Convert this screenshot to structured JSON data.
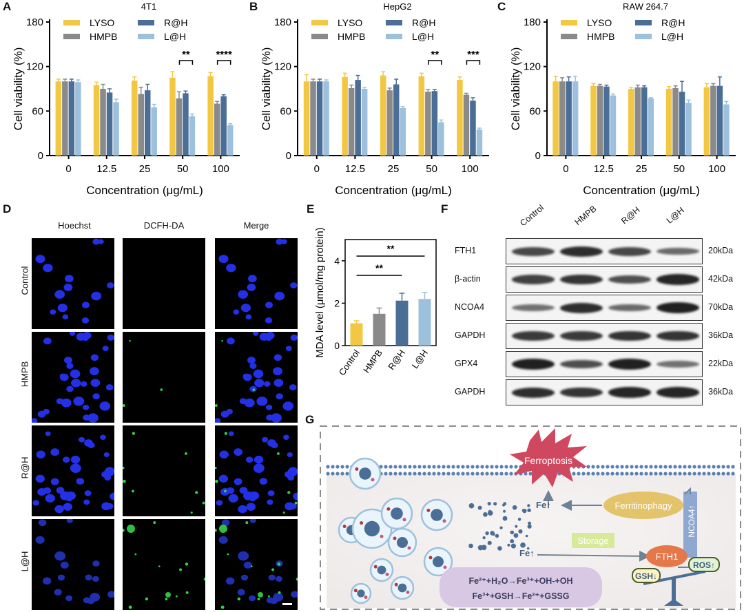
{
  "panels": {
    "A": "A",
    "B": "B",
    "C": "C",
    "D": "D",
    "E": "E",
    "F": "F",
    "G": "G"
  },
  "chart_data": [
    {
      "type": "bar",
      "panel": "A",
      "title": "4T1",
      "xlabel": "Concentration (μg/mL)",
      "ylabel": "Cell viability (%)",
      "ylim": [
        0,
        180
      ],
      "yticks": [
        0,
        60,
        120,
        180
      ],
      "categories": [
        "0",
        "12.5",
        "25",
        "50",
        "100"
      ],
      "series": [
        {
          "name": "LYSO",
          "color": "#f2c744",
          "values": [
            100,
            95,
            101,
            105,
            107
          ],
          "err": [
            3,
            4,
            5,
            8,
            5
          ]
        },
        {
          "name": "HMPB",
          "color": "#8a8a8a",
          "values": [
            100,
            90,
            83,
            77,
            70
          ],
          "err": [
            3,
            6,
            9,
            9,
            3
          ]
        },
        {
          "name": "R@H",
          "color": "#4b6e96",
          "values": [
            100,
            85,
            88,
            84,
            80
          ],
          "err": [
            3,
            5,
            8,
            3,
            2
          ]
        },
        {
          "name": "L@H",
          "color": "#9dc1dc",
          "values": [
            99,
            72,
            65,
            53,
            41
          ],
          "err": [
            3,
            4,
            4,
            3,
            2
          ]
        }
      ],
      "legend_order": [
        "LYSO",
        "R@H",
        "HMPB",
        "L@H"
      ],
      "annotations": [
        {
          "category": "50",
          "text": "**"
        },
        {
          "category": "100",
          "text": "****"
        }
      ]
    },
    {
      "type": "bar",
      "panel": "B",
      "title": "HepG2",
      "xlabel": "Concentration (μg/mL)",
      "ylabel": "Cell viability (%)",
      "ylim": [
        0,
        180
      ],
      "yticks": [
        0,
        60,
        120,
        180
      ],
      "categories": [
        "0",
        "12.5",
        "25",
        "50",
        "100"
      ],
      "series": [
        {
          "name": "LYSO",
          "color": "#f2c744",
          "values": [
            100,
            106,
            108,
            107,
            102
          ],
          "err": [
            9,
            5,
            5,
            4,
            4
          ]
        },
        {
          "name": "HMPB",
          "color": "#8a8a8a",
          "values": [
            100,
            91,
            88,
            86,
            82
          ],
          "err": [
            3,
            4,
            3,
            3,
            2
          ]
        },
        {
          "name": "R@H",
          "color": "#4b6e96",
          "values": [
            100,
            102,
            96,
            87,
            74
          ],
          "err": [
            3,
            6,
            7,
            2,
            4
          ]
        },
        {
          "name": "L@H",
          "color": "#9dc1dc",
          "values": [
            100,
            90,
            64,
            45,
            35
          ],
          "err": [
            2,
            2,
            2,
            3,
            2
          ]
        }
      ],
      "legend_order": [
        "LYSO",
        "R@H",
        "HMPB",
        "L@H"
      ],
      "annotations": [
        {
          "category": "50",
          "text": "**"
        },
        {
          "category": "100",
          "text": "***"
        }
      ]
    },
    {
      "type": "bar",
      "panel": "C",
      "title": "RAW 264.7",
      "xlabel": "Concentration (μg/mL)",
      "ylabel": "Cell viability (%)",
      "ylim": [
        0,
        180
      ],
      "yticks": [
        0,
        60,
        120,
        180
      ],
      "categories": [
        "0",
        "12.5",
        "25",
        "50",
        "100"
      ],
      "series": [
        {
          "name": "LYSO",
          "color": "#f2c744",
          "values": [
            100,
            94,
            90,
            90,
            92
          ],
          "err": [
            7,
            3,
            2,
            3,
            5
          ]
        },
        {
          "name": "HMPB",
          "color": "#8a8a8a",
          "values": [
            100,
            94,
            92,
            91,
            94
          ],
          "err": [
            5,
            2,
            3,
            3,
            3
          ]
        },
        {
          "name": "R@H",
          "color": "#4b6e96",
          "values": [
            100,
            93,
            92,
            86,
            94
          ],
          "err": [
            6,
            2,
            2,
            14,
            12
          ]
        },
        {
          "name": "L@H",
          "color": "#9dc1dc",
          "values": [
            100,
            81,
            77,
            71,
            69
          ],
          "err": [
            7,
            2,
            1,
            4,
            4
          ]
        }
      ],
      "legend_order": [
        "LYSO",
        "R@H",
        "HMPB",
        "L@H"
      ],
      "annotations": []
    },
    {
      "type": "bar",
      "panel": "E",
      "ylabel": "MDA level  (μmol/mg protein)",
      "ylim": [
        0,
        5
      ],
      "yticks": [
        0,
        2,
        4
      ],
      "categories": [
        "Control",
        "HMPB",
        "R@H",
        "L@H"
      ],
      "series": [
        {
          "colors": [
            "#f2c744",
            "#8a8a8a",
            "#4b6e96",
            "#9dc1dc"
          ],
          "values": [
            1.05,
            1.5,
            2.12,
            2.2
          ],
          "err": [
            0.12,
            0.27,
            0.35,
            0.3
          ]
        }
      ],
      "annotations": [
        {
          "from": "Control",
          "to": "R@H",
          "text": "**"
        },
        {
          "from": "Control",
          "to": "L@H",
          "text": "**"
        }
      ]
    }
  ],
  "microscopy": {
    "columns": [
      "Hoechst",
      "DCFH-DA",
      "Merge"
    ],
    "rows": [
      "Control",
      "HMPB",
      "R@H",
      "L@H"
    ]
  },
  "western": {
    "lanes": [
      "Control",
      "HMPB",
      "R@H",
      "L@H"
    ],
    "rows": [
      {
        "protein": "FTH1",
        "kda": "20kDa"
      },
      {
        "protein": "β-actin",
        "kda": "42kDa"
      },
      {
        "protein": "NCOA4",
        "kda": "70kDa"
      },
      {
        "protein": "GAPDH",
        "kda": "36kDa"
      },
      {
        "protein": "GPX4",
        "kda": "22kDa"
      },
      {
        "protein": "GAPDH",
        "kda": "36kDa"
      }
    ]
  },
  "schematic": {
    "ferroptosis": "Ferroptosis",
    "ferritinophagy": "Ferritinophagy",
    "storage": "Storage",
    "fth1": "FTH1",
    "ncoa4": "NCOA4↑",
    "fe_up_top": "Fe↑",
    "fe_up_mid": "Fe↑",
    "gsh": "GSH↓",
    "ros": "ROS↑",
    "reaction1": "Fe²⁺+H₂O→Fe³⁺+OH-+OH",
    "reaction2": "Fe³⁺+GSH→Fe²⁺+GSSG"
  }
}
